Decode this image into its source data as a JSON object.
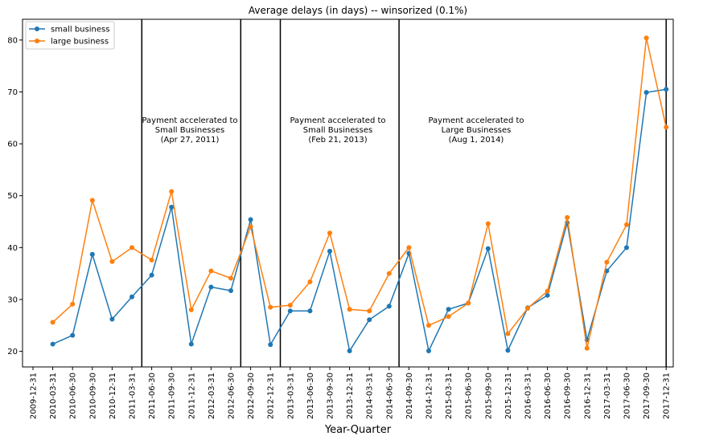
{
  "chart_data": {
    "type": "line",
    "title": "Average delays (in days) -- winsorized (0.1%)",
    "xlabel": "Year-Quarter",
    "ylabel": "",
    "ylim": [
      17,
      84
    ],
    "yticks": [
      20,
      30,
      40,
      50,
      60,
      70,
      80
    ],
    "categories": [
      "2009-12-31",
      "2010-03-31",
      "2010-06-30",
      "2010-09-30",
      "2010-12-31",
      "2011-03-31",
      "2011-06-30",
      "2011-09-30",
      "2011-12-31",
      "2012-03-31",
      "2012-06-30",
      "2012-09-30",
      "2012-12-31",
      "2013-03-31",
      "2013-06-30",
      "2013-09-30",
      "2013-12-31",
      "2014-03-31",
      "2014-06-30",
      "2014-09-30",
      "2014-12-31",
      "2015-03-31",
      "2015-06-30",
      "2015-09-30",
      "2015-12-31",
      "2016-03-31",
      "2016-06-30",
      "2016-09-30",
      "2016-12-31",
      "2017-03-31",
      "2017-06-30",
      "2017-09-30",
      "2017-12-31"
    ],
    "series": [
      {
        "name": "small business",
        "color": "#1f77b4",
        "values": [
          null,
          21.4,
          23.1,
          38.7,
          26.2,
          30.5,
          34.7,
          47.8,
          21.4,
          32.4,
          31.7,
          45.4,
          21.3,
          27.8,
          27.8,
          39.3,
          20.1,
          26.1,
          28.7,
          38.9,
          20.1,
          28.1,
          29.3,
          39.8,
          20.2,
          28.4,
          30.8,
          44.8,
          22.2,
          35.5,
          40.0,
          69.9,
          70.5
        ]
      },
      {
        "name": "large business",
        "color": "#ff7f0e",
        "values": [
          null,
          25.6,
          29.1,
          49.1,
          37.3,
          40.0,
          37.6,
          50.8,
          28.0,
          35.5,
          34.1,
          44.0,
          28.5,
          28.9,
          33.4,
          42.8,
          28.1,
          27.8,
          35.0,
          40.0,
          25.0,
          26.7,
          29.3,
          44.6,
          23.4,
          28.3,
          31.6,
          45.8,
          20.6,
          37.2,
          44.4,
          80.4,
          63.2
        ]
      }
    ],
    "vlines": [
      "2011-06-30 (before)",
      "2012-09-30 (before)",
      "2013-03-31 (before)",
      "2014-09-30 (before)",
      "2017-12-31"
    ],
    "annotations": [
      {
        "lines": [
          "Payment accelerated to",
          "Small Businesses",
          "(Apr 27, 2011)"
        ]
      },
      {
        "lines": [
          "Payment accelerated to",
          "Small Businesses",
          "(Feb 21, 2013)"
        ]
      },
      {
        "lines": [
          "Payment accelerated to",
          "Large Businesses",
          "(Aug 1, 2014)"
        ]
      }
    ],
    "legend_position": "top-left",
    "grid": false
  }
}
